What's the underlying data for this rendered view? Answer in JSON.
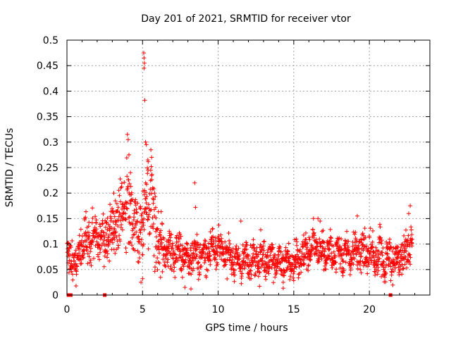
{
  "chart_data": {
    "type": "scatter",
    "title": "Day 201 of 2021, SRMTID for receiver vtor",
    "xlabel": "GPS time / hours",
    "ylabel": "SRMTID / TECUs",
    "xlim": [
      0,
      24
    ],
    "ylim": [
      0,
      0.5
    ],
    "xticks": [
      0,
      5,
      10,
      15,
      20
    ],
    "yticks": [
      0,
      0.05,
      0.1,
      0.15,
      0.2,
      0.25,
      0.3,
      0.35,
      0.4,
      0.45,
      0.5
    ],
    "xtick_labels": [
      "0",
      "5",
      "10",
      "15",
      "20"
    ],
    "ytick_labels": [
      "0",
      "0.05",
      "0.1",
      "0.15",
      "0.2",
      "0.25",
      "0.3",
      "0.35",
      "0.4",
      "0.45",
      "0.5"
    ],
    "grid": true,
    "marker": "+",
    "color": "#ff0000",
    "gap_markers_x": [
      0.1,
      0.25,
      2.5,
      21.4
    ],
    "series": [
      {
        "name": "SRMTID",
        "anchors": [
          [
            0.0,
            0.075
          ],
          [
            0.3,
            0.07
          ],
          [
            0.6,
            0.065
          ],
          [
            1.0,
            0.105
          ],
          [
            1.5,
            0.11
          ],
          [
            2.0,
            0.115
          ],
          [
            2.5,
            0.11
          ],
          [
            3.0,
            0.12
          ],
          [
            3.4,
            0.15
          ],
          [
            3.8,
            0.175
          ],
          [
            4.2,
            0.17
          ],
          [
            4.6,
            0.13
          ],
          [
            4.9,
            0.1
          ],
          [
            5.1,
            0.14
          ],
          [
            5.3,
            0.2
          ],
          [
            5.6,
            0.17
          ],
          [
            5.9,
            0.11
          ],
          [
            6.3,
            0.095
          ],
          [
            7.0,
            0.085
          ],
          [
            8.0,
            0.075
          ],
          [
            9.0,
            0.08
          ],
          [
            10.0,
            0.09
          ],
          [
            11.0,
            0.07
          ],
          [
            12.0,
            0.065
          ],
          [
            13.0,
            0.07
          ],
          [
            14.0,
            0.065
          ],
          [
            15.0,
            0.065
          ],
          [
            15.6,
            0.075
          ],
          [
            16.3,
            0.095
          ],
          [
            17.0,
            0.085
          ],
          [
            18.0,
            0.08
          ],
          [
            19.0,
            0.085
          ],
          [
            20.0,
            0.085
          ],
          [
            21.0,
            0.07
          ],
          [
            22.0,
            0.075
          ],
          [
            22.8,
            0.1
          ]
        ],
        "noise": [
          [
            0.0,
            0.02
          ],
          [
            1.0,
            0.025
          ],
          [
            3.0,
            0.03
          ],
          [
            4.0,
            0.045
          ],
          [
            5.0,
            0.06
          ],
          [
            5.5,
            0.05
          ],
          [
            6.5,
            0.025
          ],
          [
            8.0,
            0.02
          ],
          [
            12.0,
            0.018
          ],
          [
            16.0,
            0.02
          ],
          [
            20.0,
            0.02
          ],
          [
            22.8,
            0.025
          ]
        ],
        "outliers": [
          [
            5.08,
            0.475
          ],
          [
            5.1,
            0.465
          ],
          [
            5.12,
            0.455
          ],
          [
            5.1,
            0.445
          ],
          [
            5.15,
            0.382
          ],
          [
            5.2,
            0.3
          ],
          [
            5.25,
            0.295
          ],
          [
            5.55,
            0.285
          ],
          [
            5.6,
            0.27
          ],
          [
            5.35,
            0.265
          ],
          [
            4.0,
            0.315
          ],
          [
            4.05,
            0.305
          ],
          [
            4.1,
            0.275
          ],
          [
            4.2,
            0.24
          ],
          [
            8.45,
            0.22
          ],
          [
            8.5,
            0.172
          ],
          [
            5.0,
            0.032
          ],
          [
            4.9,
            0.025
          ],
          [
            0.6,
            0.018
          ],
          [
            7.8,
            0.015
          ],
          [
            8.2,
            0.012
          ],
          [
            3.1,
            0.2
          ],
          [
            3.2,
            0.185
          ],
          [
            22.7,
            0.175
          ],
          [
            22.6,
            0.16
          ],
          [
            19.2,
            0.155
          ],
          [
            16.6,
            0.15
          ],
          [
            14.3,
            0.025
          ],
          [
            11.5,
            0.145
          ]
        ]
      }
    ]
  }
}
